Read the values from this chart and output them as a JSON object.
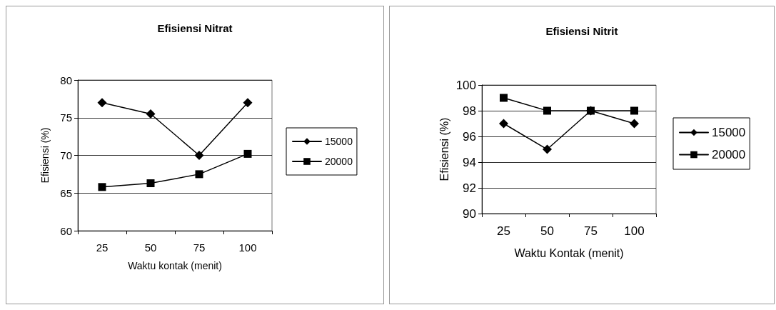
{
  "chart_data": [
    {
      "type": "line",
      "title": "Efisiensi Nitrat",
      "xlabel": "Waktu kontak (menit)",
      "ylabel": "Efisiensi (%)",
      "categories": [
        "25",
        "50",
        "75",
        "100"
      ],
      "series": [
        {
          "name": "15000",
          "color": "#000000",
          "marker": "diamond",
          "values": [
            77,
            75.5,
            70,
            77
          ]
        },
        {
          "name": "20000",
          "color": "#000000",
          "marker": "square",
          "values": [
            65.8,
            66.3,
            67.5,
            70.2
          ]
        }
      ],
      "ylim": [
        60,
        80
      ],
      "yticks": [
        60,
        65,
        70,
        75,
        80
      ],
      "grid": "y",
      "legend": "right"
    },
    {
      "type": "line",
      "title": "Efisiensi Nitrit",
      "xlabel": "Waktu Kontak (menit)",
      "ylabel": "Efisiensi (%)",
      "categories": [
        "25",
        "50",
        "75",
        "100"
      ],
      "series": [
        {
          "name": "15000",
          "color": "#000000",
          "marker": "diamond",
          "values": [
            97,
            95,
            98,
            97
          ]
        },
        {
          "name": "20000",
          "color": "#000000",
          "marker": "square",
          "values": [
            99,
            98,
            98,
            98
          ]
        }
      ],
      "ylim": [
        90,
        100
      ],
      "yticks": [
        90,
        92,
        94,
        96,
        98,
        100
      ],
      "grid": "y",
      "legend": "right"
    }
  ]
}
